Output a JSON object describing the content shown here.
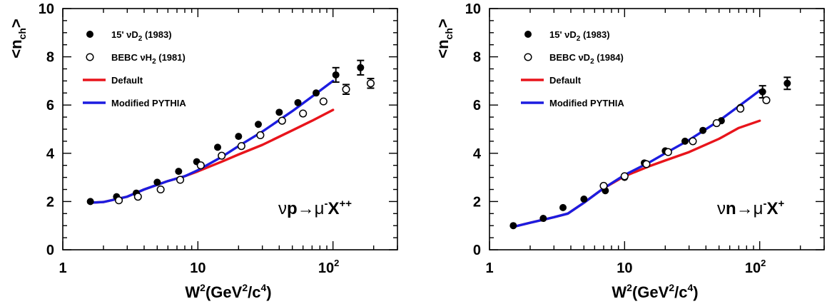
{
  "chart_data": [
    {
      "type": "scatter",
      "xscale": "log",
      "xlim": [
        1,
        300
      ],
      "ylim": [
        0,
        10
      ],
      "x_tick_labels": {
        "1": "1",
        "10": "10",
        "100": "10",
        "100_sup": "2"
      },
      "y_ticks": [
        0,
        2,
        4,
        6,
        8,
        10
      ],
      "xlabel": {
        "base": "W",
        "sup1": "2",
        "open": "(GeV",
        "sup2": "2",
        "mid": "/c",
        "sup3": "4",
        "close": ")"
      },
      "ylabel": {
        "open": "<n",
        "sub": "ch",
        "close": ">"
      },
      "annotation": {
        "nu": "ν",
        "p": "p",
        "arrow": "→μ",
        "minus": "-",
        "X": "X",
        "charge": "++"
      },
      "series": [
        {
          "name": "15' νD2 (1983)",
          "label": {
            "pre": "15' νD",
            "sub": "2",
            "post": " (1983)"
          },
          "marker": "filled-circle",
          "color": "#000000",
          "x": [
            1.6,
            2.5,
            3.5,
            5.0,
            7.2,
            9.8,
            14.0,
            20.0,
            28.0,
            40.0,
            55.0,
            75.0,
            105.0,
            160.0
          ],
          "y": [
            2.0,
            2.2,
            2.35,
            2.8,
            3.25,
            3.65,
            4.25,
            4.7,
            5.2,
            5.7,
            6.1,
            6.5,
            7.25,
            7.55
          ],
          "yerr": [
            0,
            0,
            0,
            0,
            0,
            0,
            0,
            0,
            0,
            0,
            0,
            0,
            0.3,
            0.3
          ]
        },
        {
          "name": "BEBC νH2 (1981)",
          "label": {
            "pre": "BEBC νH",
            "sub": "2",
            "post": " (1981)"
          },
          "marker": "open-circle",
          "color": "#000000",
          "x": [
            2.6,
            3.6,
            5.3,
            7.4,
            10.5,
            15.0,
            21.0,
            29.0,
            42.0,
            60.0,
            85.0,
            125.0,
            190.0
          ],
          "y": [
            2.05,
            2.2,
            2.5,
            2.9,
            3.5,
            3.9,
            4.3,
            4.75,
            5.35,
            5.65,
            6.15,
            6.65,
            6.9
          ],
          "yerr": [
            0,
            0,
            0,
            0,
            0,
            0,
            0,
            0,
            0,
            0,
            0,
            0.2,
            0.2
          ]
        },
        {
          "name": "Default",
          "label": {
            "pre": "Default",
            "sub": "",
            "post": ""
          },
          "type": "line",
          "color": "#e8141b",
          "x": [
            1.6,
            2.0,
            3.0,
            4.0,
            6.0,
            8.0,
            10.0,
            15.0,
            20.0,
            30.0,
            50.0,
            70.0,
            100.0
          ],
          "y": [
            1.95,
            1.98,
            2.2,
            2.5,
            2.85,
            3.05,
            3.25,
            3.65,
            3.95,
            4.35,
            4.95,
            5.35,
            5.8
          ]
        },
        {
          "name": "Modified PYTHIA",
          "label": {
            "pre": "Modified PYTHIA",
            "sub": "",
            "post": ""
          },
          "type": "line",
          "color": "#1c1ce0",
          "x": [
            1.6,
            2.0,
            3.0,
            4.0,
            6.0,
            8.0,
            10.0,
            15.0,
            20.0,
            30.0,
            50.0,
            70.0,
            100.0
          ],
          "y": [
            1.95,
            1.98,
            2.2,
            2.5,
            2.85,
            3.05,
            3.3,
            3.85,
            4.3,
            4.9,
            5.75,
            6.35,
            7.0
          ]
        }
      ]
    },
    {
      "type": "scatter",
      "xscale": "log",
      "xlim": [
        1,
        300
      ],
      "ylim": [
        0,
        10
      ],
      "x_tick_labels": {
        "1": "1",
        "10": "10",
        "100": "10",
        "100_sup": "2"
      },
      "y_ticks": [
        0,
        2,
        4,
        6,
        8,
        10
      ],
      "xlabel": {
        "base": "W",
        "sup1": "2",
        "open": "(GeV",
        "sup2": "2",
        "mid": "/c",
        "sup3": "4",
        "close": ")"
      },
      "ylabel": {
        "open": "<n",
        "sub": "ch",
        "close": ">"
      },
      "annotation": {
        "nu": "ν",
        "p": "n",
        "arrow": "→μ",
        "minus": "-",
        "X": "X",
        "charge": "+"
      },
      "series": [
        {
          "name": "15' νD2 (1983)",
          "label": {
            "pre": "15' νD",
            "sub": "2",
            "post": " (1983)"
          },
          "marker": "filled-circle",
          "color": "#000000",
          "x": [
            1.5,
            2.5,
            3.5,
            5.0,
            7.2,
            10.0,
            14.0,
            20.0,
            28.0,
            38.0,
            52.0,
            72.0,
            105.0,
            160.0
          ],
          "y": [
            1.0,
            1.3,
            1.75,
            2.1,
            2.45,
            3.0,
            3.6,
            4.1,
            4.5,
            4.95,
            5.35,
            5.9,
            6.55,
            6.9
          ],
          "yerr": [
            0,
            0,
            0,
            0,
            0,
            0,
            0,
            0,
            0,
            0,
            0,
            0,
            0.25,
            0.25
          ]
        },
        {
          "name": "BEBC νD2 (1984)",
          "label": {
            "pre": "BEBC νD",
            "sub": "2",
            "post": " (1984)"
          },
          "marker": "open-circle",
          "color": "#000000",
          "x": [
            7.0,
            10.0,
            14.5,
            21.0,
            32.0,
            48.0,
            72.0,
            112.0
          ],
          "y": [
            2.65,
            3.05,
            3.55,
            4.05,
            4.5,
            5.25,
            5.85,
            6.2
          ],
          "yerr": [
            0,
            0,
            0,
            0,
            0,
            0,
            0,
            0
          ]
        },
        {
          "name": "Default",
          "label": {
            "pre": "Default",
            "sub": "",
            "post": ""
          },
          "type": "line",
          "color": "#e8141b",
          "x": [
            1.5,
            2.0,
            3.0,
            3.8,
            5.0,
            7.0,
            10.0,
            15.0,
            20.0,
            30.0,
            50.0,
            70.0,
            100.0
          ],
          "y": [
            0.95,
            1.12,
            1.35,
            1.5,
            1.95,
            2.55,
            3.05,
            3.45,
            3.7,
            4.05,
            4.6,
            5.05,
            5.35
          ]
        },
        {
          "name": "Modified PYTHIA",
          "label": {
            "pre": "Modified PYTHIA",
            "sub": "",
            "post": ""
          },
          "type": "line",
          "color": "#1c1ce0",
          "x": [
            1.5,
            2.0,
            3.0,
            3.8,
            5.0,
            7.0,
            10.0,
            15.0,
            20.0,
            30.0,
            50.0,
            70.0,
            100.0
          ],
          "y": [
            0.95,
            1.12,
            1.35,
            1.5,
            1.95,
            2.55,
            3.1,
            3.6,
            4.0,
            4.55,
            5.35,
            5.95,
            6.6
          ]
        }
      ]
    }
  ]
}
